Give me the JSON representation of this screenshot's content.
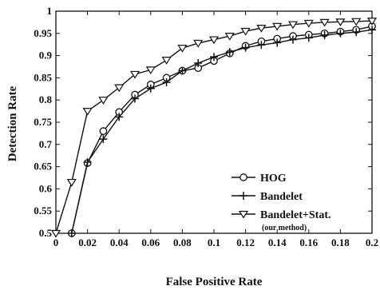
{
  "chart_data": {
    "type": "line",
    "title": "",
    "xlabel": "False Positive Rate",
    "ylabel": "Detection Rate",
    "xlim": [
      0,
      0.2
    ],
    "ylim": [
      0.5,
      1.0
    ],
    "xticks": [
      0,
      0.02,
      0.04,
      0.06,
      0.08,
      0.1,
      0.12,
      0.14,
      0.16,
      0.18,
      0.2
    ],
    "xtick_labels": [
      "0",
      "0.02",
      "0.04",
      "0.06",
      "0.08",
      "0.1",
      "0.12",
      "0.14",
      "0.16",
      "0.18",
      "0.2"
    ],
    "yticks": [
      0.5,
      0.55,
      0.6,
      0.65,
      0.7,
      0.75,
      0.8,
      0.85,
      0.9,
      0.95,
      1.0
    ],
    "ytick_labels": [
      "0.5",
      "0.55",
      "0.6",
      "0.65",
      "0.7",
      "0.75",
      "0.8",
      "0.85",
      "0.9",
      "0.95",
      "1"
    ],
    "grid": false,
    "legend_position": "bottom-right",
    "series": [
      {
        "name": "HOG",
        "marker": "circle",
        "x": [
          0.01,
          0.02,
          0.03,
          0.04,
          0.05,
          0.06,
          0.07,
          0.08,
          0.09,
          0.1,
          0.11,
          0.12,
          0.13,
          0.14,
          0.15,
          0.16,
          0.17,
          0.18,
          0.19,
          0.2
        ],
        "y": [
          0.5,
          0.658,
          0.73,
          0.773,
          0.812,
          0.835,
          0.85,
          0.866,
          0.872,
          0.888,
          0.905,
          0.922,
          0.932,
          0.938,
          0.944,
          0.947,
          0.95,
          0.954,
          0.958,
          0.966
        ]
      },
      {
        "name": "Bandelet",
        "marker": "plus",
        "x": [
          0.01,
          0.02,
          0.03,
          0.04,
          0.05,
          0.06,
          0.07,
          0.08,
          0.09,
          0.1,
          0.11,
          0.12,
          0.13,
          0.14,
          0.15,
          0.16,
          0.17,
          0.18,
          0.19,
          0.2
        ],
        "y": [
          0.5,
          0.66,
          0.712,
          0.762,
          0.803,
          0.826,
          0.84,
          0.866,
          0.883,
          0.897,
          0.908,
          0.918,
          0.924,
          0.929,
          0.936,
          0.94,
          0.946,
          0.95,
          0.953,
          0.958
        ]
      },
      {
        "name": "Bandelet+Stat.",
        "note": "(our method)",
        "marker": "triangle-down",
        "x": [
          0,
          0.01,
          0.02,
          0.03,
          0.04,
          0.05,
          0.06,
          0.07,
          0.08,
          0.09,
          0.1,
          0.11,
          0.12,
          0.13,
          0.14,
          0.15,
          0.16,
          0.17,
          0.18,
          0.19,
          0.2
        ],
        "y": [
          0.5,
          0.615,
          0.775,
          0.8,
          0.828,
          0.858,
          0.868,
          0.89,
          0.917,
          0.928,
          0.936,
          0.944,
          0.955,
          0.962,
          0.966,
          0.97,
          0.973,
          0.975,
          0.976,
          0.977,
          0.978
        ]
      }
    ]
  }
}
